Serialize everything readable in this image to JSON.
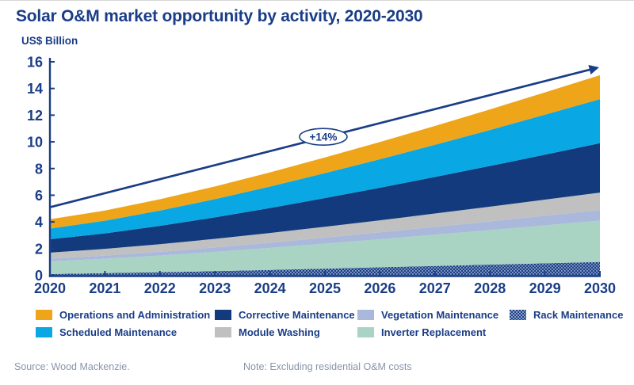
{
  "title": "Solar O&M market opportunity by activity, 2020-2030",
  "unit_label": "US$ Billion",
  "source": "Source: Wood Mackenzie.",
  "note": "Note: Excluding residential O&M costs",
  "colors": {
    "navy_text": "#1a3d87",
    "axis": "#1a3d87",
    "orange": "#efa51a",
    "cyan": "#09a7e3",
    "dark_navy": "#123a7d",
    "gray": "#c0c0c0",
    "lavender": "#aab9db",
    "green": "#a9d4c3",
    "rack_base": "#1b4083",
    "rack_dot": "#8ba0cc",
    "muted_text": "#8894ab"
  },
  "chart_data": {
    "type": "area",
    "stacked": true,
    "title": "Solar O&M market opportunity by activity, 2020-2030",
    "ylabel": "US$ Billion",
    "xlabel": "",
    "grid": false,
    "legend_position": "bottom",
    "x": [
      2020,
      2021,
      2022,
      2023,
      2024,
      2025,
      2026,
      2027,
      2028,
      2029,
      2030
    ],
    "ylim": [
      0,
      16
    ],
    "y_ticks": [
      0,
      2,
      4,
      6,
      8,
      10,
      12,
      14,
      16
    ],
    "series": [
      {
        "id": "rack-maintenance",
        "name": "Rack Maintenance",
        "color": "rack_base",
        "pattern": "checker",
        "values": [
          0.1,
          0.16,
          0.23,
          0.31,
          0.4,
          0.5,
          0.6,
          0.7,
          0.8,
          0.9,
          1.0
        ]
      },
      {
        "id": "inverter-replacement",
        "name": "Inverter Replacement",
        "color": "green",
        "values": [
          0.95,
          1.08,
          1.25,
          1.44,
          1.65,
          1.87,
          2.1,
          2.34,
          2.58,
          2.84,
          3.1
        ]
      },
      {
        "id": "vegetation-maintenance",
        "name": "Vegetation Maintenance",
        "color": "lavender",
        "values": [
          0.2,
          0.24,
          0.28,
          0.34,
          0.39,
          0.46,
          0.52,
          0.59,
          0.66,
          0.73,
          0.8
        ]
      },
      {
        "id": "module-washing",
        "name": "Module Washing",
        "color": "gray",
        "values": [
          0.45,
          0.5,
          0.57,
          0.64,
          0.73,
          0.81,
          0.9,
          1.0,
          1.1,
          1.2,
          1.3
        ]
      },
      {
        "id": "corrective-maintenance",
        "name": "Corrective Maintenance",
        "color": "dark_navy",
        "values": [
          1.0,
          1.16,
          1.37,
          1.61,
          1.87,
          2.15,
          2.44,
          2.74,
          3.05,
          3.37,
          3.7
        ]
      },
      {
        "id": "scheduled-maintenance",
        "name": "Scheduled Maintenance",
        "color": "cyan",
        "values": [
          0.8,
          0.95,
          1.15,
          1.37,
          1.61,
          1.87,
          2.14,
          2.41,
          2.7,
          3.0,
          3.3
        ]
      },
      {
        "id": "operations-administration",
        "name": "Operations and Administration",
        "color": "orange",
        "values": [
          0.7,
          0.76,
          0.85,
          0.95,
          1.06,
          1.17,
          1.29,
          1.41,
          1.54,
          1.67,
          1.8
        ]
      }
    ],
    "totals": [
      4.2,
      4.85,
      5.7,
      6.66,
      7.71,
      8.83,
      9.99,
      11.19,
      12.43,
      13.71,
      15.0
    ],
    "legend_order": [
      "operations-administration",
      "corrective-maintenance",
      "vegetation-maintenance",
      "rack-maintenance",
      "scheduled-maintenance",
      "module-washing",
      "inverter-replacement"
    ],
    "trend_arrow": {
      "label": "+14%",
      "from": {
        "x": 2020,
        "y": 5.1
      },
      "to": {
        "x": 2029.95,
        "y": 15.55
      },
      "label_at": {
        "x": 2024.97,
        "y": 10.38
      }
    }
  }
}
